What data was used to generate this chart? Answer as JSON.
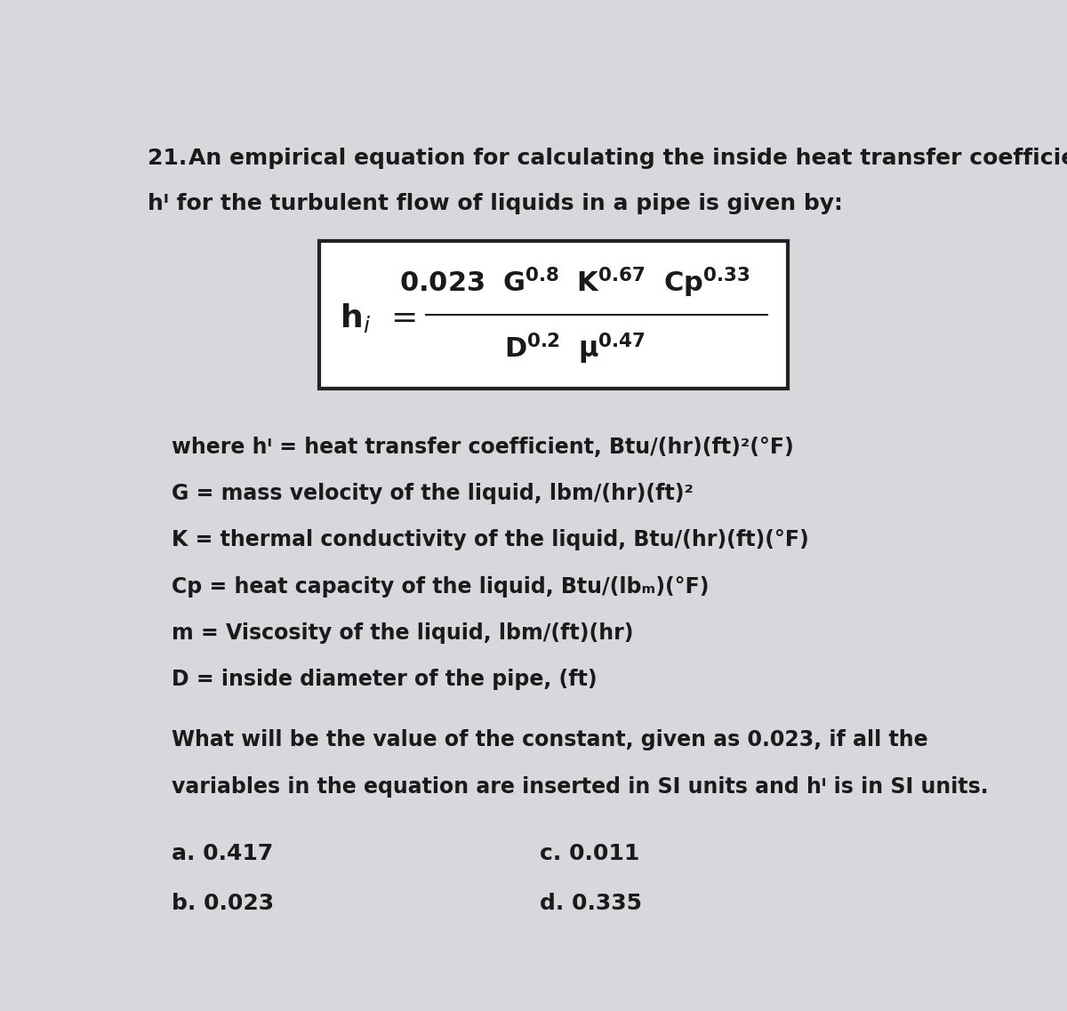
{
  "bg_color": "#d8d8dc",
  "title_number": "21.",
  "title_line1": "An empirical equation for calculating the inside heat transfer coefficient,",
  "title_line2": "hᴵ for the turbulent flow of liquids in a pipe is given by:",
  "where_lines": [
    "where hᴵ = heat transfer coefficient, Btu/(hr)(ft)²(°F)",
    "G = mass velocity of the liquid, lbm/(hr)(ft)²",
    "K = thermal conductivity of the liquid, Btu/(hr)(ft)(°F)",
    "Cp = heat capacity of the liquid, Btu/(lbₘ)(°F)",
    "m = Viscosity of the liquid, lbm/(ft)(hr)",
    "D = inside diameter of the pipe, (ft)"
  ],
  "question_line1": "What will be the value of the constant, given as 0.023, if all the",
  "question_line2": "variables in the equation are inserted in SI units and hᴵ is in SI units.",
  "choices_left": [
    "a. 0.417",
    "b. 0.023"
  ],
  "choices_right": [
    "c. 0.011",
    "d. 0.335"
  ],
  "text_color": "#1a1a1a",
  "box_edge_color": "#222222",
  "font_size_title": 18,
  "font_size_formula_main": 22,
  "font_size_formula_sub": 20,
  "font_size_body": 17,
  "font_size_choices": 18
}
